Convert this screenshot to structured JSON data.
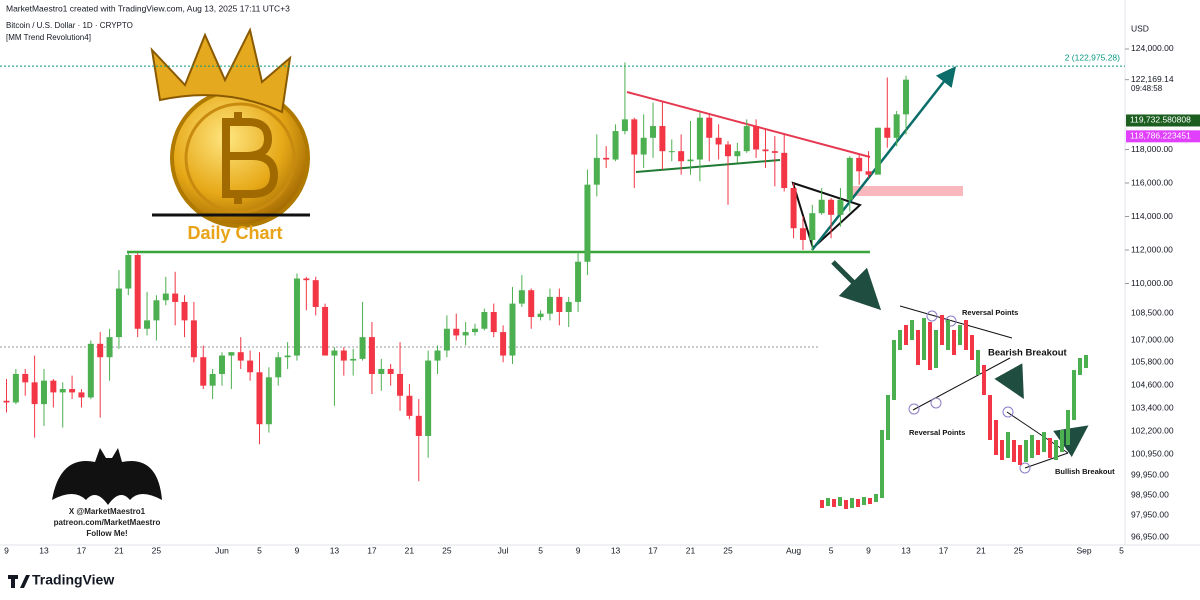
{
  "header": "MarketMaestro1 created with TradingView.com, Aug 13, 2025 17:11 UTC+3",
  "chart_data": {
    "type": "candlestick",
    "title": "Bitcoin / U.S. Dollar · 1D · CRYPTO",
    "subtitle": "[MM Trend Revolution4]",
    "ylabel": "USD",
    "annotation": "Daily Chart",
    "categories": [
      "9",
      null,
      null,
      null,
      "13",
      null,
      null,
      null,
      "17",
      null,
      null,
      null,
      "21",
      null,
      null,
      null,
      "25",
      null,
      null,
      null,
      null,
      null,
      null,
      "Jun",
      null,
      null,
      null,
      "5",
      null,
      null,
      null,
      "9",
      null,
      null,
      null,
      "13",
      null,
      null,
      null,
      "17",
      null,
      null,
      null,
      "21",
      null,
      null,
      null,
      "25",
      null,
      null,
      null,
      null,
      null,
      "Jul",
      null,
      null,
      null,
      "5",
      null,
      null,
      null,
      "9",
      null,
      null,
      null,
      "13",
      null,
      null,
      null,
      "17",
      null,
      null,
      null,
      "21",
      null,
      null,
      null,
      "25",
      null,
      null,
      null,
      null,
      null,
      null,
      "Aug",
      null,
      null,
      null,
      "5",
      null,
      null,
      null,
      "9",
      null,
      null,
      null,
      "13",
      null,
      null,
      null,
      "17",
      null,
      null,
      null,
      "21",
      null,
      null,
      null,
      "25",
      null,
      null,
      null,
      null,
      null,
      null,
      "Sep",
      null,
      null,
      null,
      "5"
    ],
    "open": [
      103000,
      102900,
      104600,
      104100,
      102800,
      104200,
      103500,
      103700,
      103500,
      103200,
      106400,
      105600,
      106800,
      109700,
      111700,
      107300,
      107800,
      109000,
      109400,
      108900,
      107800,
      105600,
      103900,
      104600,
      105700,
      105900,
      105400,
      104700,
      101600,
      104400,
      105600,
      105700,
      110300,
      110200,
      108600,
      105700,
      106000,
      105400,
      105500,
      106800,
      104600,
      104900,
      104600,
      103300,
      102100,
      100900,
      105400,
      106000,
      107300,
      106900,
      107100,
      107300,
      108300,
      107100,
      105700,
      108800,
      109600,
      108000,
      108200,
      109200,
      108300,
      108900,
      111300,
      115900,
      117500,
      117400,
      119100,
      119800,
      117700,
      118700,
      119400,
      117900,
      117900,
      117300,
      117400,
      119900,
      118700,
      118300,
      117600,
      117900,
      119400,
      118000,
      117900,
      117800,
      115700,
      113300,
      112600,
      114200,
      115000,
      114100,
      115000,
      117500,
      116700,
      116500,
      119300,
      118700,
      120100,
      null,
      null,
      null,
      null,
      null,
      null,
      null,
      null,
      null,
      null,
      null,
      null,
      null,
      null,
      null,
      null,
      null,
      null,
      null,
      null,
      null,
      null,
      null
    ],
    "high": [
      104300,
      104900,
      104900,
      105700,
      104900,
      104300,
      104100,
      104500,
      103700,
      106600,
      107100,
      107300,
      110800,
      111900,
      111800,
      109500,
      109300,
      110400,
      110700,
      109300,
      108900,
      106300,
      104900,
      105900,
      105900,
      106800,
      106000,
      105900,
      105000,
      105900,
      106500,
      110600,
      110400,
      110400,
      108800,
      106200,
      106200,
      106100,
      108900,
      107700,
      105500,
      105200,
      106500,
      104000,
      103100,
      106000,
      106300,
      108100,
      108200,
      107700,
      107600,
      108500,
      108800,
      107500,
      109800,
      110500,
      109700,
      108400,
      109700,
      109700,
      109200,
      111900,
      116800,
      118900,
      118200,
      119500,
      123200,
      119900,
      120100,
      120800,
      120900,
      118600,
      118900,
      119700,
      120200,
      120100,
      119500,
      118500,
      118400,
      119800,
      119800,
      119200,
      118800,
      118900,
      116000,
      114000,
      114700,
      115700,
      115100,
      115700,
      117600,
      117700,
      117900,
      119300,
      122300,
      120300,
      122400,
      null,
      null,
      null,
      null,
      null,
      null,
      null,
      null,
      null,
      null,
      null,
      null,
      null,
      null,
      null,
      null,
      null,
      null,
      null,
      null,
      null,
      null,
      null
    ],
    "low": [
      102300,
      102800,
      103300,
      100800,
      101500,
      102600,
      101400,
      103100,
      102600,
      103100,
      102000,
      104200,
      106100,
      109300,
      106800,
      106900,
      106600,
      108700,
      107500,
      106800,
      105300,
      103700,
      103100,
      103900,
      103700,
      104900,
      104200,
      100400,
      101100,
      103900,
      104900,
      105400,
      108400,
      108100,
      105700,
      102700,
      104500,
      104500,
      105400,
      103400,
      103600,
      103900,
      102400,
      101900,
      98200,
      99600,
      104600,
      105600,
      106600,
      106300,
      106900,
      107200,
      106800,
      105300,
      105200,
      108600,
      107300,
      107800,
      107800,
      107500,
      107400,
      108300,
      110500,
      115200,
      116900,
      117300,
      118900,
      115700,
      116900,
      117500,
      116800,
      117300,
      116500,
      116500,
      116100,
      117300,
      117400,
      114700,
      117200,
      117800,
      117500,
      116900,
      115800,
      115500,
      112700,
      112000,
      112000,
      114100,
      112700,
      113400,
      114300,
      115900,
      116300,
      116500,
      118100,
      118200,
      118900,
      null,
      null,
      null,
      null,
      null,
      null,
      null,
      null,
      null,
      null,
      null,
      null,
      null,
      null,
      null,
      null,
      null,
      null,
      null,
      null,
      null,
      null,
      null
    ],
    "close": [
      102900,
      104600,
      104100,
      102800,
      104200,
      103500,
      103700,
      103500,
      103200,
      106400,
      105600,
      106800,
      109700,
      111700,
      107300,
      107800,
      109000,
      109400,
      108900,
      107800,
      105600,
      103900,
      104600,
      105700,
      105900,
      105400,
      104700,
      101600,
      104400,
      105600,
      105700,
      110300,
      110200,
      108600,
      105700,
      106000,
      105400,
      105500,
      106800,
      104600,
      104900,
      104600,
      103300,
      102100,
      100900,
      105400,
      106000,
      107300,
      106900,
      107100,
      107300,
      108300,
      107100,
      105700,
      108800,
      109600,
      108000,
      108200,
      109200,
      108300,
      108900,
      111300,
      115900,
      117500,
      117400,
      119100,
      119800,
      117700,
      118700,
      119400,
      117900,
      117900,
      117300,
      117400,
      119900,
      118700,
      118300,
      117600,
      117900,
      119400,
      118000,
      117900,
      117800,
      115700,
      113300,
      112600,
      114200,
      115000,
      114100,
      115000,
      117500,
      116700,
      116500,
      119300,
      118700,
      120100,
      122169.14,
      null,
      null,
      null,
      null,
      null,
      null,
      null,
      null,
      null,
      null,
      null,
      null,
      null,
      null,
      null,
      null,
      null,
      null,
      null,
      null,
      null,
      null,
      null
    ],
    "up_color": "#4caf50",
    "down_color": "#f23645",
    "ylim": [
      94390,
      126925
    ],
    "yticks": [
      {
        "value": 124000,
        "label": "124,000.00"
      },
      {
        "value": 118000,
        "label": "118,000.00"
      },
      {
        "value": 116000,
        "label": "116,000.00"
      },
      {
        "value": 114000,
        "label": "114,000.00"
      },
      {
        "value": 112000,
        "label": "112,000.00"
      },
      {
        "value": 110000,
        "label": "110,000.00"
      }
    ],
    "last_price": {
      "value": 122169.14,
      "label": "122,169.14"
    },
    "countdown": "09:48:58",
    "price_labels": [
      {
        "value": 119732.580808,
        "label": "119,732.580808",
        "color": "#1b5e20"
      },
      {
        "value": 118786.223451,
        "label": "118,786.223451",
        "color": "#e040fb"
      }
    ],
    "level": {
      "value": 122975.28,
      "label": "2 (122,975.28)",
      "color": "#089981"
    }
  },
  "watermark": [
    "X @MarketMaestro1",
    "patreon.com/MarketMaestro",
    "Follow Me!"
  ],
  "inset": {
    "notes": [
      "Reversal Points",
      "Bearish Breakout",
      "Reversal Points",
      "Bullish Breakout"
    ],
    "axis_labels": [
      "108,500.00",
      "107,000.00",
      "105,800.00",
      "104,600.00",
      "103,400.00",
      "102,200.00",
      "100,950.00",
      "99,950.00",
      "98,950.00",
      "97,950.00",
      "96,950.00"
    ]
  },
  "footer": "TradingView"
}
